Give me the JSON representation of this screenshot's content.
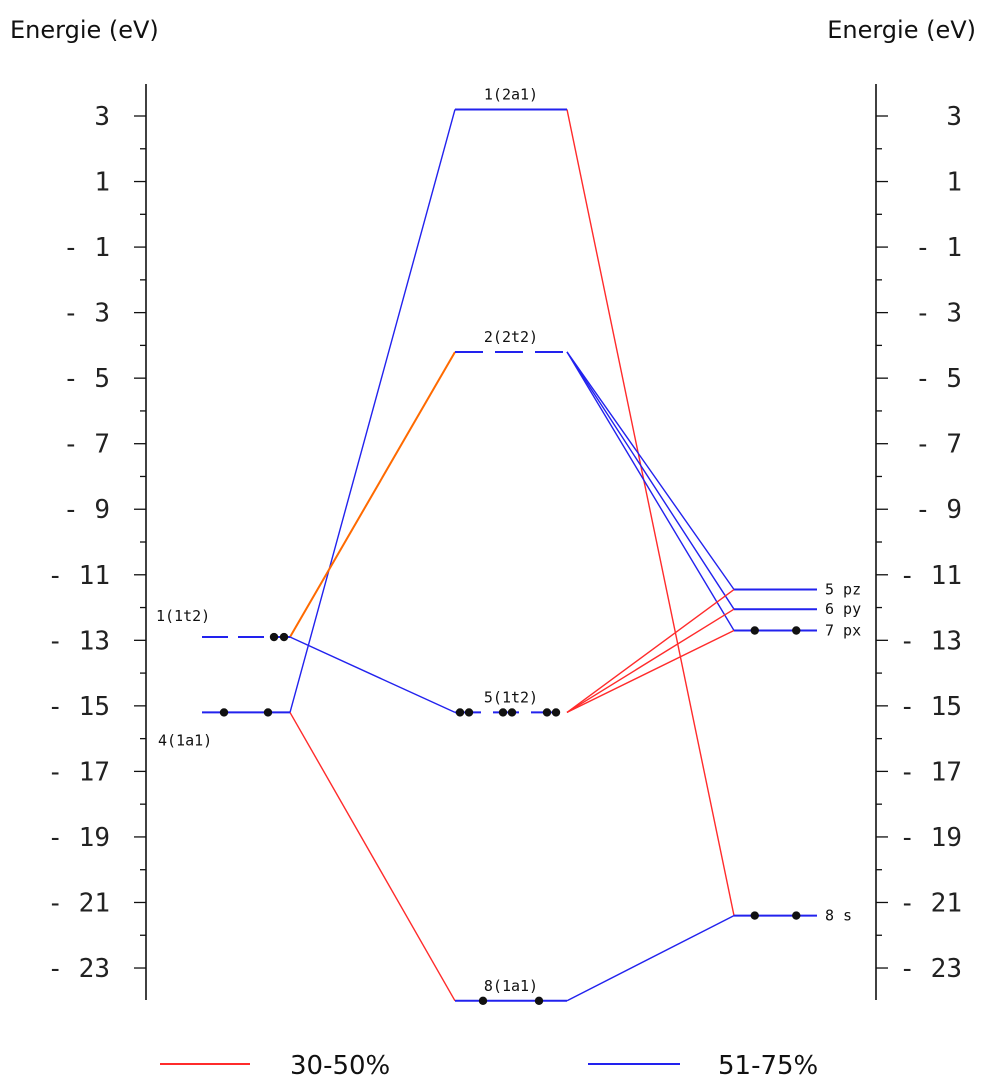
{
  "axis": {
    "left_title": "Energie (eV)",
    "right_title": "Energie (eV)",
    "ticks": [
      "3",
      "1",
      "- 1",
      "- 3",
      "- 5",
      "- 7",
      "- 9",
      "- 11",
      "- 13",
      "- 15",
      "- 17",
      "- 19",
      "- 21",
      "- 23"
    ],
    "tick_values": [
      3,
      1,
      -1,
      -3,
      -5,
      -7,
      -9,
      -11,
      -13,
      -15,
      -17,
      -19,
      -21,
      -23
    ],
    "range_ev": [
      -24,
      4
    ]
  },
  "colors": {
    "red": "#ff2b2b",
    "blue": "#2222ee",
    "orange": "#ff6a00",
    "black": "#111111"
  },
  "levels": {
    "left": [
      {
        "id": "L1t2",
        "label": "1(1t2)",
        "energy": -12.9,
        "electrons": 2,
        "style": "dashed"
      },
      {
        "id": "L4a1",
        "label": "4(1a1)",
        "energy": -15.2,
        "electrons": 2,
        "style": "solid"
      }
    ],
    "center": [
      {
        "id": "C2a1",
        "label": "1(2a1)",
        "energy": 3.2,
        "electrons": 0,
        "style": "solid"
      },
      {
        "id": "C2t2",
        "label": "2(2t2)",
        "energy": -4.2,
        "electrons": 0,
        "style": "dashed"
      },
      {
        "id": "C1t2",
        "label": "5(1t2)",
        "energy": -15.2,
        "electrons": 6,
        "style": "dashed"
      },
      {
        "id": "C1a1",
        "label": "8(1a1)",
        "energy": -24.0,
        "electrons": 2,
        "style": "solid"
      }
    ],
    "right": [
      {
        "id": "Rpz",
        "label": "5 pz",
        "energy": -11.45,
        "electrons": 0,
        "style": "solid"
      },
      {
        "id": "Rpy",
        "label": "6 py",
        "energy": -12.05,
        "electrons": 0,
        "style": "solid"
      },
      {
        "id": "Rpx",
        "label": "7 px",
        "energy": -12.7,
        "electrons": 2,
        "style": "solid"
      },
      {
        "id": "Rs",
        "label": "8 s",
        "energy": -21.4,
        "electrons": 2,
        "style": "solid"
      }
    ]
  },
  "connections": [
    {
      "from": "C2a1",
      "to": "L4a1",
      "color": "blue"
    },
    {
      "from": "C2a1",
      "to": "Rs",
      "color": "red"
    },
    {
      "from": "C2t2",
      "to": "L1t2",
      "color": "orange"
    },
    {
      "from": "C2t2",
      "to": "Rpz",
      "color": "blue"
    },
    {
      "from": "C2t2",
      "to": "Rpy",
      "color": "blue"
    },
    {
      "from": "C2t2",
      "to": "Rpx",
      "color": "blue"
    },
    {
      "from": "C1t2",
      "to": "L1t2",
      "color": "blue"
    },
    {
      "from": "C1t2",
      "to": "Rpz",
      "color": "red"
    },
    {
      "from": "C1t2",
      "to": "Rpy",
      "color": "red"
    },
    {
      "from": "C1t2",
      "to": "Rpx",
      "color": "red"
    },
    {
      "from": "C1a1",
      "to": "L4a1",
      "color": "red"
    },
    {
      "from": "C1a1",
      "to": "Rs",
      "color": "blue"
    }
  ],
  "legend": [
    {
      "label": "30-50%",
      "color": "red"
    },
    {
      "label": "51-75%",
      "color": "blue"
    }
  ]
}
